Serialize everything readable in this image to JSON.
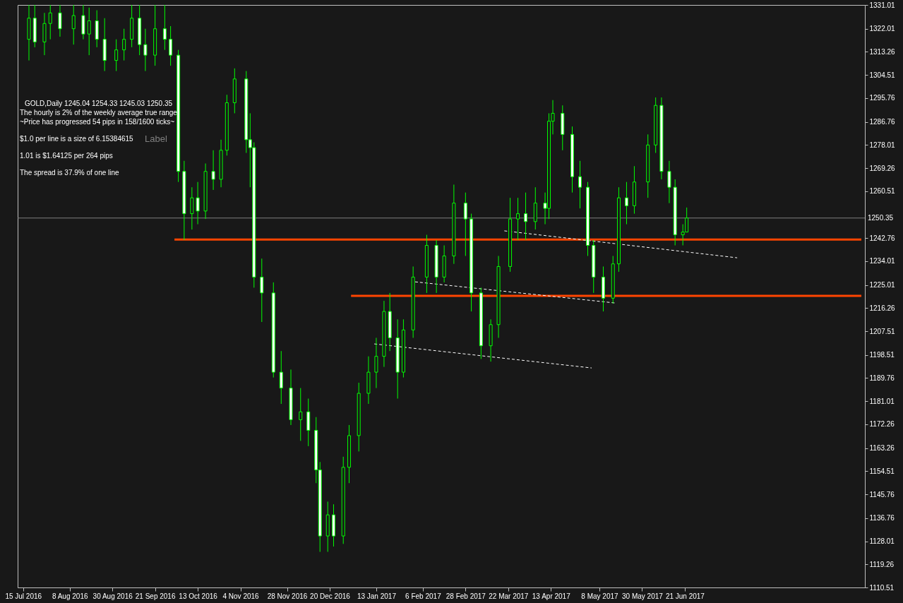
{
  "chart_data": {
    "type": "candlestick",
    "title": "GOLD,Daily  1245.04 1254.33 1245.03 1250.35",
    "annotations": [
      "The hourly is 2% of the weekly average true range",
      "~Price has progressed  54  pips in 158/1600 ticks~",
      "$1.0 per line is a size of 6.15384615",
      "1.01 is $1.64125 per 264 pips",
      "The spread is 37.9% of one line",
      "Label"
    ],
    "color": "#00ff00",
    "x": [
      "2016-07-18",
      "2016-07-21",
      "2016-07-26",
      "2016-07-29",
      "2016-08-03",
      "2016-08-10",
      "2016-08-15",
      "2016-08-18",
      "2016-08-22",
      "2016-08-26",
      "2016-09-01",
      "2016-09-05",
      "2016-09-09",
      "2016-09-13",
      "2016-09-16",
      "2016-09-21",
      "2016-09-26",
      "2016-09-29",
      "2016-10-03",
      "2016-10-06",
      "2016-10-10",
      "2016-10-13",
      "2016-10-17",
      "2016-10-21",
      "2016-10-25",
      "2016-10-28",
      "2016-11-01",
      "2016-11-07",
      "2016-11-09",
      "2016-11-11",
      "2016-11-15",
      "2016-11-21",
      "2016-11-25",
      "2016-11-30",
      "2016-12-05",
      "2016-12-09",
      "2016-12-13",
      "2016-12-15",
      "2016-12-19",
      "2016-12-22",
      "2016-12-27",
      "2016-12-30",
      "2017-01-04",
      "2017-01-09",
      "2017-01-13",
      "2017-01-17",
      "2017-01-20",
      "2017-01-24",
      "2017-01-27",
      "2017-02-01",
      "2017-02-08",
      "2017-02-13",
      "2017-02-17",
      "2017-02-22",
      "2017-02-28",
      "2017-03-03",
      "2017-03-08",
      "2017-03-13",
      "2017-03-17",
      "2017-03-23",
      "2017-03-27",
      "2017-03-31",
      "2017-04-05",
      "2017-04-10",
      "2017-04-12",
      "2017-04-14",
      "2017-04-19",
      "2017-04-24",
      "2017-04-28",
      "2017-05-02",
      "2017-05-05",
      "2017-05-10",
      "2017-05-15",
      "2017-05-18",
      "2017-05-22",
      "2017-05-26",
      "2017-06-02",
      "2017-06-06",
      "2017-06-09",
      "2017-06-13",
      "2017-06-16",
      "2017-06-20",
      "2017-06-22"
    ],
    "ohlc": [
      [
        1318,
        1331,
        1310,
        1326
      ],
      [
        1326,
        1331,
        1315,
        1317
      ],
      [
        1317,
        1328,
        1312,
        1324
      ],
      [
        1324,
        1331,
        1318,
        1328
      ],
      [
        1328,
        1331,
        1319,
        1322
      ],
      [
        1322,
        1331,
        1316,
        1327
      ],
      [
        1327,
        1331,
        1318,
        1320
      ],
      [
        1320,
        1330,
        1312,
        1325
      ],
      [
        1325,
        1329,
        1315,
        1318
      ],
      [
        1318,
        1326,
        1306,
        1310
      ],
      [
        1310,
        1318,
        1306,
        1314
      ],
      [
        1314,
        1322,
        1310,
        1318
      ],
      [
        1318,
        1331,
        1315,
        1326
      ],
      [
        1326,
        1331,
        1312,
        1316
      ],
      [
        1316,
        1322,
        1306,
        1312
      ],
      [
        1312,
        1331,
        1308,
        1322
      ],
      [
        1322,
        1331,
        1314,
        1318
      ],
      [
        1318,
        1323,
        1308,
        1312
      ],
      [
        1312,
        1314,
        1264,
        1268
      ],
      [
        1268,
        1272,
        1242,
        1252
      ],
      [
        1252,
        1262,
        1246,
        1258
      ],
      [
        1258,
        1264,
        1248,
        1253
      ],
      [
        1253,
        1271,
        1250,
        1268
      ],
      [
        1268,
        1276,
        1261,
        1265
      ],
      [
        1265,
        1280,
        1262,
        1276
      ],
      [
        1276,
        1297,
        1274,
        1294
      ],
      [
        1294,
        1307,
        1290,
        1303
      ],
      [
        1303,
        1306,
        1275,
        1280
      ],
      [
        1280,
        1290,
        1262,
        1277
      ],
      [
        1277,
        1279,
        1224,
        1228
      ],
      [
        1228,
        1235,
        1211,
        1222
      ],
      [
        1222,
        1226,
        1190,
        1192
      ],
      [
        1192,
        1200,
        1180,
        1186
      ],
      [
        1186,
        1193,
        1172,
        1174
      ],
      [
        1174,
        1186,
        1166,
        1177
      ],
      [
        1177,
        1182,
        1164,
        1170
      ],
      [
        1170,
        1175,
        1150,
        1155
      ],
      [
        1155,
        1158,
        1124,
        1130
      ],
      [
        1130,
        1143,
        1124,
        1138
      ],
      [
        1138,
        1142,
        1126,
        1130
      ],
      [
        1130,
        1160,
        1127,
        1156
      ],
      [
        1156,
        1172,
        1150,
        1168
      ],
      [
        1168,
        1188,
        1162,
        1184
      ],
      [
        1184,
        1198,
        1180,
        1192
      ],
      [
        1192,
        1205,
        1186,
        1198
      ],
      [
        1198,
        1219,
        1194,
        1215
      ],
      [
        1215,
        1222,
        1200,
        1205
      ],
      [
        1205,
        1212,
        1182,
        1192
      ],
      [
        1192,
        1212,
        1190,
        1208
      ],
      [
        1208,
        1232,
        1205,
        1228
      ],
      [
        1228,
        1244,
        1222,
        1240
      ],
      [
        1240,
        1242,
        1222,
        1228
      ],
      [
        1228,
        1240,
        1226,
        1236
      ],
      [
        1236,
        1263,
        1233,
        1256
      ],
      [
        1256,
        1260,
        1236,
        1250
      ],
      [
        1250,
        1252,
        1215,
        1222
      ],
      [
        1222,
        1224,
        1197,
        1202
      ],
      [
        1202,
        1212,
        1196,
        1210
      ],
      [
        1210,
        1236,
        1205,
        1232
      ],
      [
        1232,
        1258,
        1230,
        1250
      ],
      [
        1250,
        1258,
        1242,
        1252
      ],
      [
        1252,
        1260,
        1242,
        1249
      ],
      [
        1249,
        1262,
        1246,
        1256
      ],
      [
        1256,
        1260,
        1248,
        1254
      ],
      [
        1254,
        1290,
        1250,
        1287
      ],
      [
        1287,
        1295,
        1282,
        1290
      ],
      [
        1290,
        1293,
        1276,
        1282
      ],
      [
        1282,
        1285,
        1260,
        1266
      ],
      [
        1266,
        1272,
        1254,
        1262
      ],
      [
        1262,
        1264,
        1236,
        1240
      ],
      [
        1240,
        1242,
        1222,
        1228
      ],
      [
        1228,
        1232,
        1215,
        1220
      ],
      [
        1220,
        1236,
        1218,
        1233
      ],
      [
        1233,
        1262,
        1230,
        1258
      ],
      [
        1258,
        1264,
        1248,
        1255
      ],
      [
        1255,
        1270,
        1252,
        1264
      ],
      [
        1264,
        1282,
        1258,
        1278
      ],
      [
        1278,
        1296,
        1275,
        1293
      ],
      [
        1293,
        1296,
        1265,
        1268
      ],
      [
        1268,
        1272,
        1256,
        1262
      ],
      [
        1262,
        1265,
        1240,
        1244
      ],
      [
        1244,
        1248,
        1240,
        1245.04
      ],
      [
        1245.04,
        1254.33,
        1245.03,
        1250.35
      ]
    ],
    "series": [
      {
        "type": "line",
        "color": "#ff4500",
        "x": [
          "2016-10-01",
          "2017-09-20"
        ],
        "values": [
          1242.2,
          1242.2
        ]
      },
      {
        "type": "line",
        "color": "#ff4500",
        "x": [
          "2016-12-31",
          "2017-09-20"
        ],
        "values": [
          1220.9,
          1220.9
        ]
      },
      {
        "type": "line",
        "color": "#ffffff",
        "line_style": "dashed",
        "x": [
          "2017-03-20",
          "2017-07-18"
        ],
        "values": [
          1245.5,
          1235.3
        ]
      },
      {
        "type": "line",
        "color": "#ffffff",
        "line_style": "dashed",
        "x": [
          "2017-02-02",
          "2017-05-16"
        ],
        "values": [
          1226.2,
          1218.2
        ]
      },
      {
        "type": "line",
        "color": "#ffffff",
        "line_style": "dashed",
        "x": [
          "2017-01-12",
          "2017-05-04"
        ],
        "values": [
          1202.7,
          1193.6
        ]
      }
    ],
    "ref_lines": [
      {
        "axis": "y",
        "value": 1250.35,
        "label": "1250.35",
        "color": "#808080"
      }
    ],
    "xlim": [
      "2016-07-14",
      "2017-09-20"
    ],
    "xticks": [
      {
        "value": "2016-07-15",
        "label": "15 Jul 2016"
      },
      {
        "value": "2016-08-08",
        "label": "8 Aug 2016"
      },
      {
        "value": "2016-08-30",
        "label": "30 Aug 2016"
      },
      {
        "value": "2016-09-21",
        "label": "21 Sep 2016"
      },
      {
        "value": "2016-10-13",
        "label": "13 Oct 2016"
      },
      {
        "value": "2016-11-04",
        "label": "4 Nov 2016"
      },
      {
        "value": "2016-11-28",
        "label": "28 Nov 2016"
      },
      {
        "value": "2016-12-20",
        "label": "20 Dec 2016"
      },
      {
        "value": "2017-01-13",
        "label": "13 Jan 2017"
      },
      {
        "value": "2017-02-06",
        "label": "6 Feb 2017"
      },
      {
        "value": "2017-02-28",
        "label": "28 Feb 2017"
      },
      {
        "value": "2017-03-22",
        "label": "22 Mar 2017"
      },
      {
        "value": "2017-04-13",
        "label": "13 Apr 2017"
      },
      {
        "value": "2017-05-08",
        "label": "8 May 2017"
      },
      {
        "value": "2017-05-30",
        "label": "30 May 2017"
      },
      {
        "value": "2017-06-21",
        "label": "21 Jun 2017"
      }
    ],
    "ylim": [
      1110.51,
      1331.01
    ],
    "yticks": [
      1110.51,
      1119.26,
      1128.01,
      1136.76,
      1145.76,
      1154.51,
      1163.26,
      1172.26,
      1181.01,
      1189.76,
      1198.51,
      1207.51,
      1216.26,
      1225.01,
      1234.01,
      1242.76,
      1260.51,
      1269.26,
      1278.01,
      1286.76,
      1295.76,
      1304.51,
      1313.26,
      1322.01,
      1331.01
    ]
  }
}
